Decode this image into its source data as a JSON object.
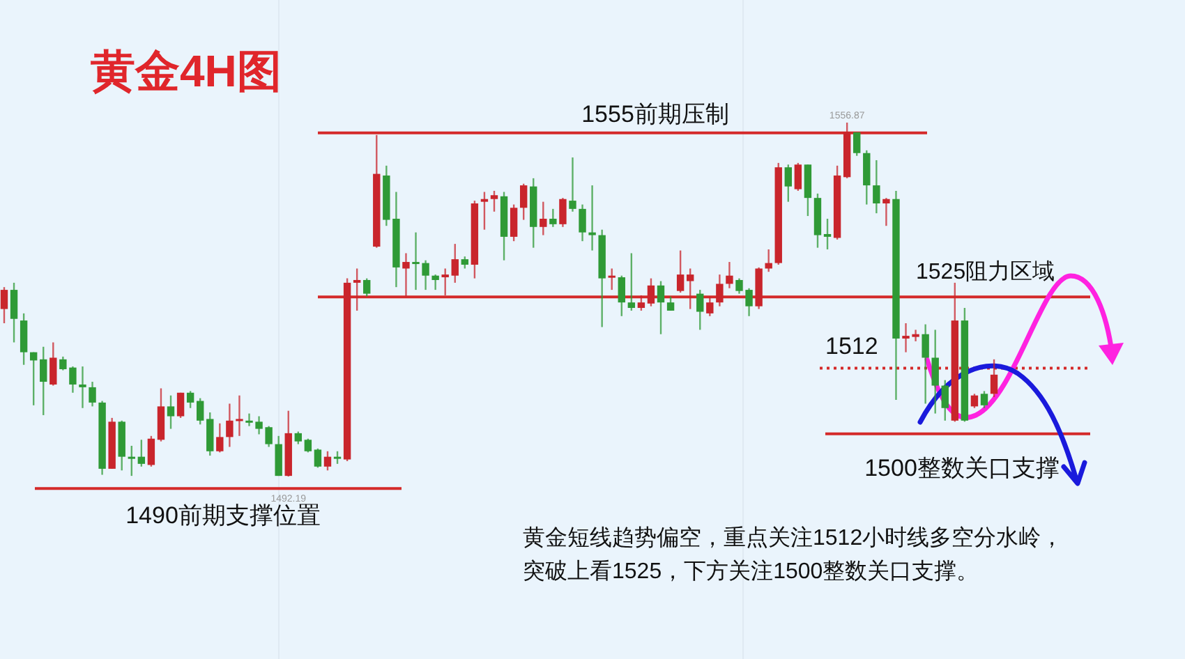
{
  "chart_data": {
    "type": "candlestick",
    "title": "黄金4H图",
    "categories": [
      null,
      null,
      null,
      null,
      null,
      null,
      null,
      null,
      null,
      null,
      null,
      null,
      null,
      null,
      null,
      null,
      null,
      null,
      null,
      null,
      null,
      null,
      null,
      null,
      null,
      null,
      null,
      null,
      null,
      null,
      null,
      null,
      null,
      null,
      null,
      null,
      null,
      null,
      null,
      null,
      null,
      null,
      null,
      null,
      null,
      null,
      null,
      null,
      null,
      null,
      null,
      null,
      null,
      null,
      null,
      null,
      null,
      null,
      null,
      null,
      null,
      null,
      null,
      null,
      null,
      null,
      null,
      null,
      null,
      null,
      null,
      null,
      null,
      null,
      null,
      null,
      null,
      null,
      null,
      null,
      null,
      null,
      null,
      null,
      null,
      null,
      null,
      null,
      null,
      null,
      null,
      null,
      null,
      null,
      null,
      null,
      null,
      null,
      null,
      null,
      null,
      null
    ],
    "ohlc": [
      [
        1522.8,
        1526.8,
        1520.2,
        1526.3
      ],
      [
        1526.3,
        1527.6,
        1516.7,
        1521.0
      ],
      [
        1520.7,
        1522.0,
        1512.6,
        1514.9
      ],
      [
        1514.9,
        1514.9,
        1505.2,
        1513.4
      ],
      [
        1513.6,
        1515.9,
        1503.4,
        1509.5
      ],
      [
        1509.0,
        1516.7,
        1508.8,
        1513.9
      ],
      [
        1513.6,
        1514.1,
        1511.6,
        1511.8
      ],
      [
        1512.1,
        1512.3,
        1507.5,
        1509.0
      ],
      [
        1509.0,
        1512.3,
        1504.7,
        1508.5
      ],
      [
        1508.5,
        1509.5,
        1505.0,
        1505.7
      ],
      [
        1505.7,
        1506.0,
        1492.5,
        1493.6
      ],
      [
        1493.6,
        1502.9,
        1493.6,
        1502.2
      ],
      [
        1502.2,
        1502.4,
        1493.3,
        1495.8
      ],
      [
        1495.8,
        1497.8,
        1492.3,
        1495.5
      ],
      [
        1495.8,
        1498.9,
        1494.0,
        1494.5
      ],
      [
        1494.3,
        1499.6,
        1494.0,
        1499.1
      ],
      [
        1498.9,
        1508.3,
        1498.6,
        1505.0
      ],
      [
        1505.0,
        1507.0,
        1500.9,
        1503.2
      ],
      [
        1503.2,
        1507.5,
        1502.9,
        1507.5
      ],
      [
        1507.5,
        1507.8,
        1504.7,
        1505.7
      ],
      [
        1506.0,
        1506.5,
        1501.7,
        1502.4
      ],
      [
        1502.7,
        1503.9,
        1496.0,
        1496.8
      ],
      [
        1496.8,
        1501.9,
        1496.6,
        1499.4
      ],
      [
        1499.4,
        1505.5,
        1497.6,
        1502.4
      ],
      [
        1502.4,
        1507.0,
        1499.6,
        1502.7
      ],
      [
        1502.4,
        1503.7,
        1501.4,
        1502.2
      ],
      [
        1502.2,
        1503.2,
        1499.9,
        1500.9
      ],
      [
        1501.2,
        1501.4,
        1497.6,
        1498.1
      ],
      [
        1498.1,
        1499.6,
        1492.3,
        1492.3
      ],
      [
        1492.3,
        1504.2,
        1492.19,
        1500.1
      ],
      [
        1500.1,
        1500.4,
        1498.1,
        1498.6
      ],
      [
        1498.9,
        1499.1,
        1496.6,
        1496.8
      ],
      [
        1497.1,
        1497.3,
        1493.8,
        1494.0
      ],
      [
        1494.0,
        1496.8,
        1493.3,
        1495.8
      ],
      [
        1495.8,
        1496.8,
        1494.5,
        1495.5
      ],
      [
        1495.3,
        1528.4,
        1495.0,
        1527.6
      ],
      [
        1527.6,
        1530.2,
        1522.5,
        1528.1
      ],
      [
        1528.1,
        1528.4,
        1525.1,
        1525.6
      ],
      [
        1534.2,
        1554.6,
        1534.0,
        1547.5
      ],
      [
        1547.2,
        1549.0,
        1538.0,
        1539.1
      ],
      [
        1539.3,
        1544.2,
        1526.8,
        1530.4
      ],
      [
        1530.2,
        1533.0,
        1525.1,
        1531.4
      ],
      [
        1531.4,
        1536.8,
        1526.3,
        1531.2
      ],
      [
        1531.2,
        1531.7,
        1526.3,
        1528.9
      ],
      [
        1528.9,
        1529.1,
        1526.3,
        1528.1
      ],
      [
        1528.6,
        1530.2,
        1525.3,
        1529.1
      ],
      [
        1528.9,
        1534.7,
        1527.6,
        1531.9
      ],
      [
        1531.9,
        1532.4,
        1530.2,
        1530.9
      ],
      [
        1530.9,
        1542.6,
        1528.4,
        1542.1
      ],
      [
        1542.4,
        1544.2,
        1537.3,
        1542.9
      ],
      [
        1542.9,
        1544.4,
        1540.6,
        1543.6
      ],
      [
        1543.4,
        1544.2,
        1531.7,
        1536.0
      ],
      [
        1536.0,
        1541.9,
        1535.2,
        1541.3
      ],
      [
        1541.3,
        1545.7,
        1539.1,
        1545.4
      ],
      [
        1545.2,
        1546.7,
        1534.0,
        1537.8
      ],
      [
        1537.8,
        1542.4,
        1536.3,
        1539.3
      ],
      [
        1539.3,
        1541.1,
        1537.8,
        1538.3
      ],
      [
        1538.3,
        1543.1,
        1537.8,
        1542.9
      ],
      [
        1542.6,
        1550.5,
        1540.6,
        1541.1
      ],
      [
        1541.1,
        1541.9,
        1535.2,
        1536.8
      ],
      [
        1536.8,
        1545.4,
        1533.5,
        1536.3
      ],
      [
        1536.3,
        1537.3,
        1519.5,
        1528.4
      ],
      [
        1528.6,
        1530.2,
        1526.3,
        1528.9
      ],
      [
        1528.6,
        1528.9,
        1521.5,
        1524.0
      ],
      [
        1524.0,
        1533.0,
        1522.5,
        1523.0
      ],
      [
        1523.0,
        1525.3,
        1522.5,
        1524.0
      ],
      [
        1523.8,
        1528.4,
        1523.3,
        1527.1
      ],
      [
        1527.1,
        1527.9,
        1518.2,
        1524.0
      ],
      [
        1524.0,
        1525.1,
        1522.5,
        1522.5
      ],
      [
        1526.1,
        1533.5,
        1525.8,
        1529.1
      ],
      [
        1527.9,
        1530.2,
        1522.8,
        1529.1
      ],
      [
        1525.6,
        1526.3,
        1519.0,
        1522.3
      ],
      [
        1522.0,
        1525.1,
        1521.5,
        1524.0
      ],
      [
        1524.0,
        1529.1,
        1523.3,
        1527.4
      ],
      [
        1527.4,
        1531.4,
        1526.6,
        1528.9
      ],
      [
        1528.1,
        1528.4,
        1525.6,
        1526.1
      ],
      [
        1526.3,
        1526.6,
        1521.5,
        1523.3
      ],
      [
        1523.3,
        1530.4,
        1522.8,
        1530.2
      ],
      [
        1530.2,
        1533.7,
        1529.6,
        1531.2
      ],
      [
        1531.2,
        1549.5,
        1530.9,
        1548.7
      ],
      [
        1548.7,
        1549.2,
        1542.4,
        1545.2
      ],
      [
        1544.7,
        1549.5,
        1544.4,
        1549.2
      ],
      [
        1549.2,
        1549.2,
        1539.8,
        1543.1
      ],
      [
        1543.1,
        1543.9,
        1534.0,
        1536.3
      ],
      [
        1536.5,
        1539.3,
        1533.7,
        1536.0
      ],
      [
        1535.8,
        1549.0,
        1535.5,
        1547.2
      ],
      [
        1546.9,
        1556.87,
        1546.7,
        1555.1
      ],
      [
        1555.1,
        1555.1,
        1550.8,
        1551.3
      ],
      [
        1551.3,
        1551.8,
        1541.9,
        1545.4
      ],
      [
        1545.4,
        1550.0,
        1540.3,
        1542.1
      ],
      [
        1542.1,
        1543.1,
        1538.0,
        1542.9
      ],
      [
        1542.9,
        1544.4,
        1506.2,
        1517.4
      ],
      [
        1517.4,
        1520.2,
        1514.9,
        1517.9
      ],
      [
        1517.7,
        1519.0,
        1516.9,
        1518.2
      ],
      [
        1518.2,
        1520.0,
        1505.5,
        1513.9
      ],
      [
        1513.9,
        1519.0,
        1503.7,
        1508.8
      ],
      [
        1508.8,
        1509.8,
        1502.4,
        1504.7
      ],
      [
        1502.4,
        1527.6,
        1502.2,
        1520.7
      ],
      [
        1520.7,
        1523.0,
        1502.2,
        1502.4
      ],
      [
        1505.0,
        1507.3,
        1504.7,
        1507.0
      ],
      [
        1507.3,
        1507.8,
        1504.7,
        1505.2
      ],
      [
        1507.3,
        1513.6,
        1506.7,
        1510.8
      ]
    ],
    "tick_labels": false,
    "ref_lines": [
      {
        "axis": "y",
        "value": 1555,
        "label": "1555前期压制",
        "color": "#d42a2a"
      },
      {
        "axis": "y",
        "value": 1525,
        "label": "1525阻力区域",
        "color": "#d42a2a"
      },
      {
        "axis": "y",
        "value": 1512,
        "label": "1512",
        "color": "#d42a2a",
        "line_style": "dotted"
      },
      {
        "axis": "y",
        "value": 1500,
        "label": "1500整数关口支撑",
        "color": "#d42a2a"
      },
      {
        "axis": "y",
        "value": 1490,
        "label": "1490前期支撑位置",
        "color": "#d42a2a"
      }
    ],
    "annotations": [
      {
        "text": "1556.87",
        "y": 1556.87
      },
      {
        "text": "1492.19",
        "y": 1492.19
      },
      "黄金短线趋势偏空，重点关注1512小时线多空分水岭，突破上看1525，下方关注1500整数关口支撑。"
    ]
  }
}
